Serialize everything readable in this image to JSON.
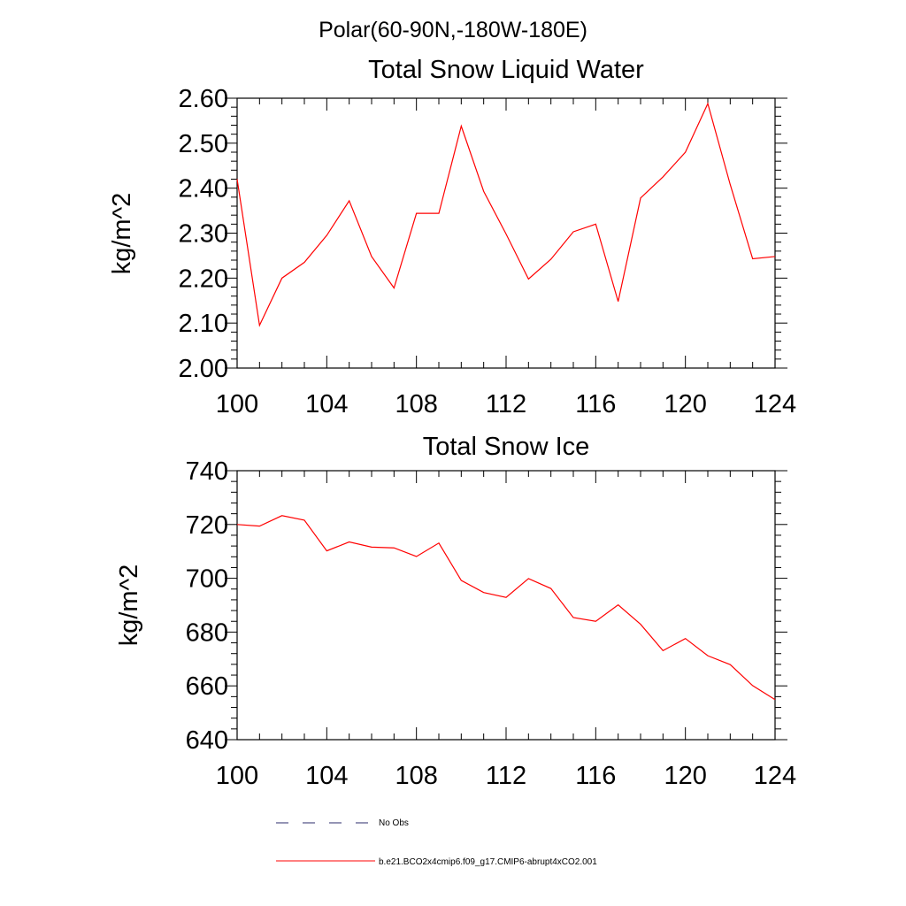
{
  "figure": {
    "suptitle": "Polar(60-90N,-180W-180E)"
  },
  "chart_data": [
    {
      "type": "line",
      "title": "Total Snow Liquid Water",
      "xlabel": "",
      "ylabel": "kg/m^2",
      "xlim": [
        100,
        124
      ],
      "ylim": [
        2.0,
        2.6
      ],
      "xticks": [
        100,
        104,
        108,
        112,
        116,
        120,
        124
      ],
      "yticks": [
        2.0,
        2.1,
        2.2,
        2.3,
        2.4,
        2.5,
        2.6
      ],
      "ytick_labels": [
        "2.00",
        "2.10",
        "2.20",
        "2.30",
        "2.40",
        "2.50",
        "2.60"
      ],
      "grid": false,
      "x": [
        100,
        101,
        102,
        103,
        104,
        105,
        106,
        107,
        108,
        109,
        110,
        111,
        112,
        113,
        114,
        115,
        116,
        117,
        118,
        119,
        120,
        121,
        122,
        123,
        124
      ],
      "series": [
        {
          "name": "b.e21.BCO2x4cmip6.f09_g17.CMIP6-abrupt4xCO2.001",
          "color": "#ff0000",
          "values": [
            2.42,
            2.095,
            2.2,
            2.235,
            2.295,
            2.372,
            2.248,
            2.178,
            2.344,
            2.344,
            2.538,
            2.393,
            2.298,
            2.198,
            2.242,
            2.303,
            2.32,
            2.148,
            2.378,
            2.425,
            2.48,
            2.588,
            2.408,
            2.243,
            2.248
          ]
        }
      ]
    },
    {
      "type": "line",
      "title": "Total Snow Ice",
      "xlabel": "",
      "ylabel": "kg/m^2",
      "xlim": [
        100,
        124
      ],
      "ylim": [
        640,
        740
      ],
      "xticks": [
        100,
        104,
        108,
        112,
        116,
        120,
        124
      ],
      "yticks": [
        640,
        660,
        680,
        700,
        720,
        740
      ],
      "ytick_labels": [
        "640",
        "660",
        "680",
        "700",
        "720",
        "740"
      ],
      "grid": false,
      "x": [
        100,
        101,
        102,
        103,
        104,
        105,
        106,
        107,
        108,
        109,
        110,
        111,
        112,
        113,
        114,
        115,
        116,
        117,
        118,
        119,
        120,
        121,
        122,
        123,
        124
      ],
      "series": [
        {
          "name": "b.e21.BCO2x4cmip6.f09_g17.CMIP6-abrupt4xCO2.001",
          "color": "#ff0000",
          "values": [
            720.0,
            719.4,
            723.3,
            721.6,
            710.2,
            713.5,
            711.6,
            711.3,
            708.1,
            713.1,
            699.2,
            694.7,
            692.9,
            699.9,
            696.2,
            685.4,
            684.0,
            690.1,
            682.9,
            673.1,
            677.6,
            671.2,
            667.9,
            660.1,
            654.9
          ]
        }
      ]
    }
  ],
  "legend": {
    "placement": "bottom",
    "items": [
      {
        "label": "No Obs",
        "style": "dashed",
        "color": "#2b2b6b"
      },
      {
        "label": "b.e21.BCO2x4cmip6.f09_g17.CMIP6-abrupt4xCO2.001",
        "style": "solid",
        "color": "#ff0000"
      }
    ]
  }
}
